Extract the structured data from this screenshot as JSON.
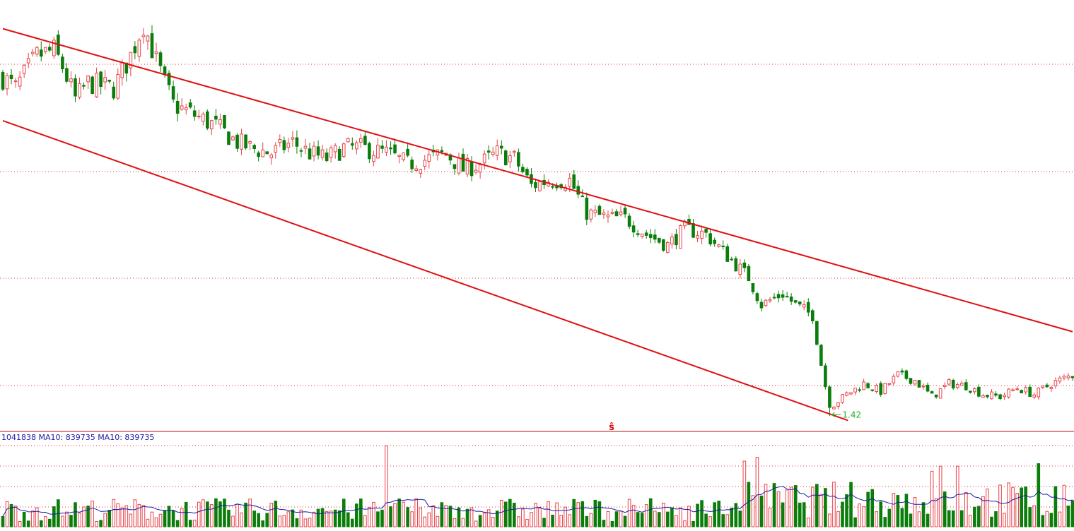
{
  "colors": {
    "up": "#e8424a",
    "down": "#0a7d0a",
    "channel": "#e01010",
    "grid": "#e03030",
    "ma_line": "#1a1aa8",
    "volume_label": "#1a1aa8",
    "low_label": "#22b022",
    "marker": "#d01010",
    "separator": "#c01010"
  },
  "icons": {
    "dividend_marker": "dividend-marker-icon"
  },
  "volume_panel": {
    "label": "1041838 MA10: 839735 MA10: 839735"
  },
  "price_panel": {
    "low_label": "1.42",
    "marker_glyph": "ŝ"
  },
  "chart_data": [
    {
      "type": "candlestick",
      "title": "",
      "xlabel": "",
      "ylabel": "",
      "grid": true,
      "legend": "none",
      "candle_count": 252,
      "channel_lines": [
        {
          "name": "upper",
          "from": [
            0.0,
            5.0
          ],
          "to": [
            1.0,
            2.2
          ]
        },
        {
          "name": "lower",
          "from": [
            0.0,
            4.15
          ],
          "to": [
            0.79,
            1.38
          ]
        }
      ],
      "low_point": {
        "index": 194,
        "value": 1.42
      },
      "ylim": [
        1.35,
        5.2
      ],
      "close_path": [
        [
          0,
          4.55
        ],
        [
          3,
          4.45
        ],
        [
          8,
          4.75
        ],
        [
          12,
          4.8
        ],
        [
          14,
          4.65
        ],
        [
          17,
          4.35
        ],
        [
          20,
          4.5
        ],
        [
          26,
          4.45
        ],
        [
          30,
          4.75
        ],
        [
          33,
          5.05
        ],
        [
          36,
          4.7
        ],
        [
          40,
          4.3
        ],
        [
          45,
          4.2
        ],
        [
          50,
          4.1
        ],
        [
          55,
          3.95
        ],
        [
          58,
          3.9
        ],
        [
          63,
          3.85
        ],
        [
          68,
          3.95
        ],
        [
          72,
          3.85
        ],
        [
          76,
          3.8
        ],
        [
          80,
          3.9
        ],
        [
          84,
          3.9
        ],
        [
          90,
          3.85
        ],
        [
          95,
          3.75
        ],
        [
          100,
          3.8
        ],
        [
          104,
          3.85
        ],
        [
          108,
          3.7
        ],
        [
          112,
          3.75
        ],
        [
          116,
          3.85
        ],
        [
          120,
          3.8
        ],
        [
          124,
          3.55
        ],
        [
          128,
          3.6
        ],
        [
          133,
          3.6
        ],
        [
          137,
          3.3
        ],
        [
          142,
          3.25
        ],
        [
          146,
          3.25
        ],
        [
          151,
          3.1
        ],
        [
          156,
          3.0
        ],
        [
          160,
          3.15
        ],
        [
          165,
          3.1
        ],
        [
          170,
          2.9
        ],
        [
          175,
          2.7
        ],
        [
          178,
          2.45
        ],
        [
          183,
          2.55
        ],
        [
          186,
          2.45
        ],
        [
          190,
          2.35
        ],
        [
          192,
          1.9
        ],
        [
          194,
          1.5
        ],
        [
          198,
          1.62
        ],
        [
          202,
          1.72
        ],
        [
          206,
          1.65
        ],
        [
          210,
          1.8
        ],
        [
          214,
          1.75
        ],
        [
          218,
          1.6
        ],
        [
          222,
          1.72
        ],
        [
          226,
          1.7
        ],
        [
          230,
          1.62
        ],
        [
          234,
          1.6
        ],
        [
          238,
          1.68
        ],
        [
          242,
          1.62
        ],
        [
          246,
          1.72
        ],
        [
          251,
          1.8
        ]
      ]
    },
    {
      "type": "bar",
      "title": "",
      "series": [
        {
          "name": "MA10",
          "value": 839735
        }
      ],
      "last_volume": 1041838,
      "base_level": 700000,
      "spike_bars": [
        {
          "index": 90,
          "value": 3200000
        },
        {
          "index": 174,
          "value": 2600000
        },
        {
          "index": 177,
          "value": 2750000
        },
        {
          "index": 218,
          "value": 2200000
        },
        {
          "index": 220,
          "value": 2400000
        },
        {
          "index": 224,
          "value": 2400000
        },
        {
          "index": 243,
          "value": 2500000
        }
      ]
    }
  ]
}
